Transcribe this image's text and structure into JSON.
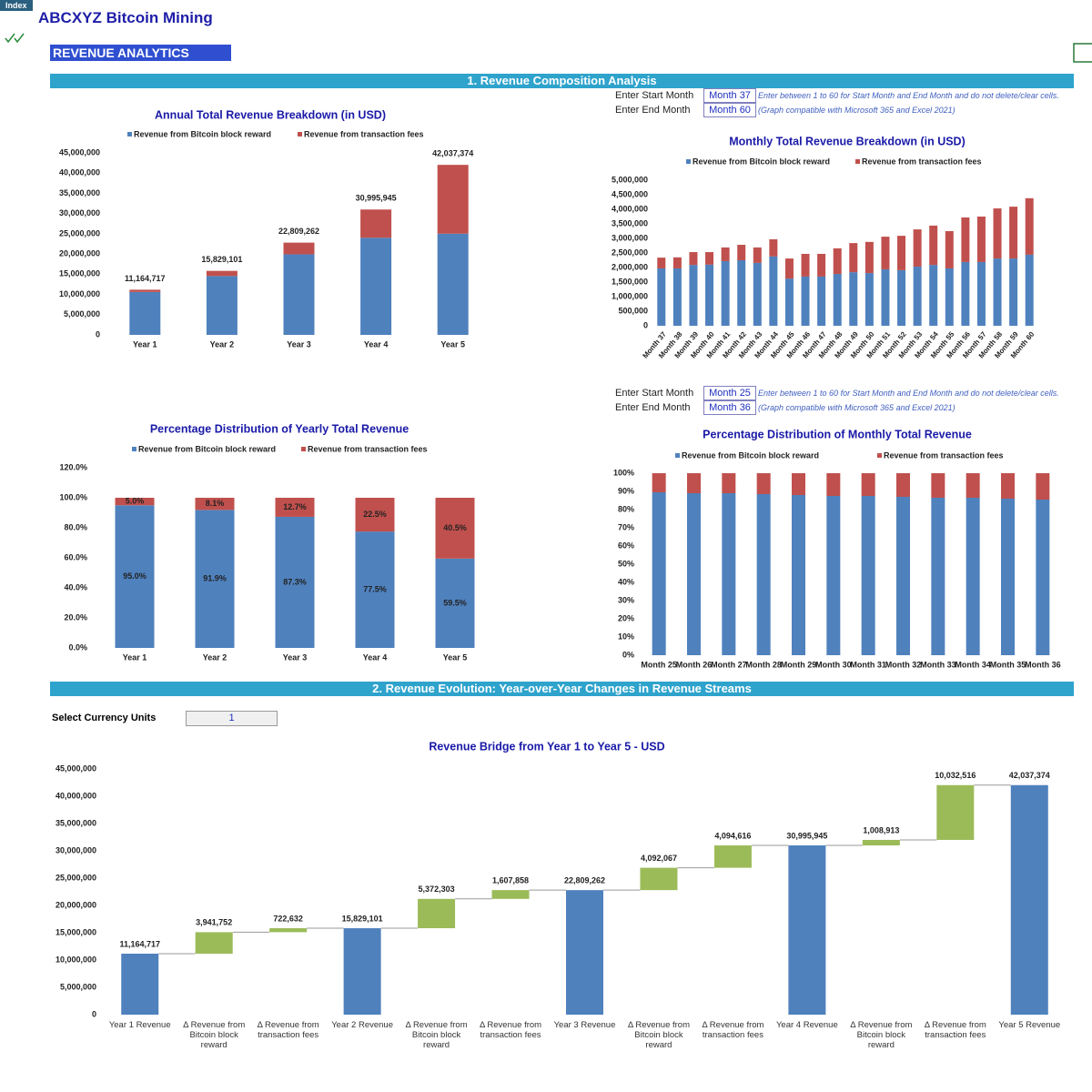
{
  "header": {
    "tab": "Index",
    "title": "ABCXYZ Bitcoin Mining",
    "page": "REVENUE ANALYTICS"
  },
  "sections": [
    "1. Revenue Composition Analysis",
    "2. Revenue Evolution: Year-over-Year Changes in Revenue Streams"
  ],
  "month_controls": [
    {
      "start_label": "Enter Start Month",
      "start": "Month 37",
      "end_label": "Enter End Month",
      "end": "Month 60",
      "note": "Enter between 1 to 60 for Start Month and End Month and do not delete/clear cells.",
      "note2": "(Graph compatible with Microsoft 365 and Excel 2021)"
    },
    {
      "start_label": "Enter Start Month",
      "start": "Month 25",
      "end_label": "Enter End Month",
      "end": "Month 36",
      "note": "Enter between 1 to 60 for Start Month and End Month and do not delete/clear cells.",
      "note2": "(Graph compatible with Microsoft 365 and Excel 2021)"
    }
  ],
  "currency": {
    "label": "Select Currency Units",
    "value": 1
  },
  "chart_data": [
    {
      "type": "bar",
      "stacked": true,
      "legend": "top",
      "grid": false,
      "title": "Annual Total Revenue Breakdown (in USD)",
      "categories": [
        "Year 1",
        "Year 2",
        "Year 3",
        "Year 4",
        "Year 5"
      ],
      "series": [
        {
          "name": "Revenue from Bitcoin block reward",
          "color": "#4f81bd",
          "values": [
            10606481,
            14548233,
            19920536,
            24012603,
            25021516
          ]
        },
        {
          "name": "Revenue from transaction fees",
          "color": "#c0504d",
          "values": [
            558236,
            1280868,
            2888726,
            6983342,
            17015858
          ]
        }
      ],
      "totals": [
        11164717,
        15829101,
        22809262,
        30995945,
        42037374
      ],
      "total_labels": [
        "11,164,717",
        "15,829,101",
        "22,809,262",
        "30,995,945",
        "42,037,374"
      ],
      "ylim": [
        0,
        45000000
      ],
      "yticks": [
        0,
        {
          "value": 5000000,
          "label": "5,000,000"
        },
        {
          "value": 10000000,
          "label": "10,000,000"
        },
        {
          "value": 15000000,
          "label": "15,000,000"
        },
        {
          "value": 20000000,
          "label": "20,000,000"
        },
        {
          "value": 25000000,
          "label": "25,000,000"
        },
        {
          "value": 30000000,
          "label": "30,000,000"
        },
        {
          "value": 35000000,
          "label": "35,000,000"
        },
        {
          "value": 40000000,
          "label": "40,000,000"
        },
        {
          "value": 45000000,
          "label": "45,000,000"
        }
      ]
    },
    {
      "type": "bar",
      "stacked": true,
      "legend": "top",
      "grid": false,
      "title": "Monthly Total Revenue Breakdown (in USD)",
      "categories": [
        "Month 37",
        "Month 38",
        "Month 39",
        "Month 40",
        "Month 41",
        "Month 42",
        "Month 43",
        "Month 44",
        "Month 45",
        "Month 46",
        "Month 47",
        "Month 48",
        "Month 49",
        "Month 50",
        "Month 51",
        "Month 52",
        "Month 53",
        "Month 54",
        "Month 55",
        "Month 56",
        "Month 57",
        "Month 58",
        "Month 59",
        "Month 60"
      ],
      "series": [
        {
          "name": "Revenue from Bitcoin block reward",
          "color": "#4f81bd",
          "values": [
            1970000,
            1970000,
            2090000,
            2100000,
            2220000,
            2250000,
            2160000,
            2380000,
            1620000,
            1690000,
            1690000,
            1780000,
            1840000,
            1810000,
            1940000,
            1910000,
            2030000,
            2090000,
            1970000,
            2190000,
            2190000,
            2310000,
            2310000,
            2440000
          ]
        },
        {
          "name": "Revenue from transaction fees",
          "color": "#c0504d",
          "values": [
            370000,
            380000,
            440000,
            430000,
            470000,
            530000,
            530000,
            590000,
            690000,
            780000,
            780000,
            880000,
            1000000,
            1070000,
            1120000,
            1180000,
            1280000,
            1350000,
            1280000,
            1530000,
            1560000,
            1720000,
            1780000,
            1940000
          ]
        }
      ],
      "ylim": [
        0,
        5000000
      ],
      "yticks": [
        0,
        {
          "value": 500000,
          "label": "500,000"
        },
        {
          "value": 1000000,
          "label": "1,000,000"
        },
        {
          "value": 1500000,
          "label": "1,500,000"
        },
        {
          "value": 2000000,
          "label": "2,000,000"
        },
        {
          "value": 2500000,
          "label": "2,500,000"
        },
        {
          "value": 3000000,
          "label": "3,000,000"
        },
        {
          "value": 3500000,
          "label": "3,500,000"
        },
        {
          "value": 4000000,
          "label": "4,000,000"
        },
        {
          "value": 4500000,
          "label": "4,500,000"
        },
        {
          "value": 5000000,
          "label": "5,000,000"
        }
      ]
    },
    {
      "type": "bar",
      "stacked": true,
      "legend": "top",
      "grid": false,
      "title": "Percentage Distribution of Yearly Total Revenue",
      "categories": [
        "Year 1",
        "Year 2",
        "Year 3",
        "Year 4",
        "Year 5"
      ],
      "series": [
        {
          "name": "Revenue from Bitcoin block reward",
          "color": "#4f81bd",
          "values": [
            95.0,
            91.9,
            87.3,
            77.5,
            59.5
          ],
          "value_labels": [
            "95.0%",
            "91.9%",
            "87.3%",
            "77.5%",
            "59.5%"
          ]
        },
        {
          "name": "Revenue from transaction fees",
          "color": "#c0504d",
          "values": [
            5.0,
            8.1,
            12.7,
            22.5,
            40.5
          ],
          "value_labels": [
            "5.0%",
            "8.1%",
            "12.7%",
            "22.5%",
            "40.5%"
          ]
        }
      ],
      "ylim": [
        0,
        120
      ],
      "yticks": [
        {
          "value": 0,
          "label": "0.0%"
        },
        {
          "value": 20,
          "label": "20.0%"
        },
        {
          "value": 40,
          "label": "40.0%"
        },
        {
          "value": 60,
          "label": "60.0%"
        },
        {
          "value": 80,
          "label": "80.0%"
        },
        {
          "value": 100,
          "label": "100.0%"
        },
        {
          "value": 120,
          "label": "120.0%"
        }
      ]
    },
    {
      "type": "bar",
      "stacked": true,
      "legend": "top",
      "grid": false,
      "title": "Percentage Distribution of Monthly Total Revenue",
      "categories": [
        "Month 25",
        "Month 26",
        "Month 27",
        "Month 28",
        "Month 29",
        "Month 30",
        "Month 31",
        "Month 32",
        "Month 33",
        "Month 34",
        "Month 35",
        "Month 36"
      ],
      "series": [
        {
          "name": "Revenue from Bitcoin block reward",
          "color": "#4f81bd",
          "values": [
            89.5,
            89,
            89,
            88.5,
            88,
            87.5,
            87.5,
            87,
            86.5,
            86.5,
            86,
            85.5
          ]
        },
        {
          "name": "Revenue from transaction fees",
          "color": "#c0504d",
          "values": [
            10.5,
            11,
            11,
            11.5,
            12,
            12.5,
            12.5,
            13,
            13.5,
            13.5,
            14,
            14.5
          ]
        }
      ],
      "ylim": [
        0,
        100
      ],
      "yticks": [
        {
          "value": 0,
          "label": "0%"
        },
        {
          "value": 10,
          "label": "10%"
        },
        {
          "value": 20,
          "label": "20%"
        },
        {
          "value": 30,
          "label": "30%"
        },
        {
          "value": 40,
          "label": "40%"
        },
        {
          "value": 50,
          "label": "50%"
        },
        {
          "value": 60,
          "label": "60%"
        },
        {
          "value": 70,
          "label": "70%"
        },
        {
          "value": 80,
          "label": "80%"
        },
        {
          "value": 90,
          "label": "90%"
        },
        {
          "value": 100,
          "label": "100%"
        }
      ]
    },
    {
      "type": "waterfall",
      "grid": false,
      "title": "Revenue Bridge from Year 1 to Year 5 - USD",
      "categories": [
        "Year 1 Revenue",
        "Δ Revenue from Bitcoin block reward",
        "Δ Revenue from transaction fees",
        "Year 2 Revenue",
        "Δ Revenue from Bitcoin block reward",
        "Δ Revenue from transaction fees",
        "Year 3 Revenue",
        "Δ Revenue from Bitcoin block reward",
        "Δ Revenue from transaction fees",
        "Year 4 Revenue",
        "Δ Revenue from Bitcoin block reward",
        "Δ Revenue from transaction fees",
        "Year 5 Revenue"
      ],
      "values": [
        11164717,
        3941752,
        722632,
        15829101,
        5372303,
        1607858,
        22809262,
        4092067,
        4094616,
        30995945,
        1008913,
        10032516,
        42037374
      ],
      "value_labels": [
        "11,164,717",
        "3,941,752",
        "722,632",
        "15,829,101",
        "5,372,303",
        "1,607,858",
        "22,809,262",
        "4,092,067",
        "4,094,616",
        "30,995,945",
        "1,008,913",
        "10,032,516",
        "42,037,374"
      ],
      "measure": [
        "total",
        "relative",
        "relative",
        "total",
        "relative",
        "relative",
        "total",
        "relative",
        "relative",
        "total",
        "relative",
        "relative",
        "total"
      ],
      "total_color": "#4f81bd",
      "increase_color": "#9bbb59",
      "ylim": [
        0,
        45000000
      ],
      "yticks": [
        0,
        {
          "value": 5000000,
          "label": "5,000,000"
        },
        {
          "value": 10000000,
          "label": "10,000,000"
        },
        {
          "value": 15000000,
          "label": "15,000,000"
        },
        {
          "value": 20000000,
          "label": "20,000,000"
        },
        {
          "value": 25000000,
          "label": "25,000,000"
        },
        {
          "value": 30000000,
          "label": "30,000,000"
        },
        {
          "value": 35000000,
          "label": "35,000,000"
        },
        {
          "value": 40000000,
          "label": "40,000,000"
        },
        {
          "value": 45000000,
          "label": "45,000,000"
        }
      ]
    }
  ]
}
